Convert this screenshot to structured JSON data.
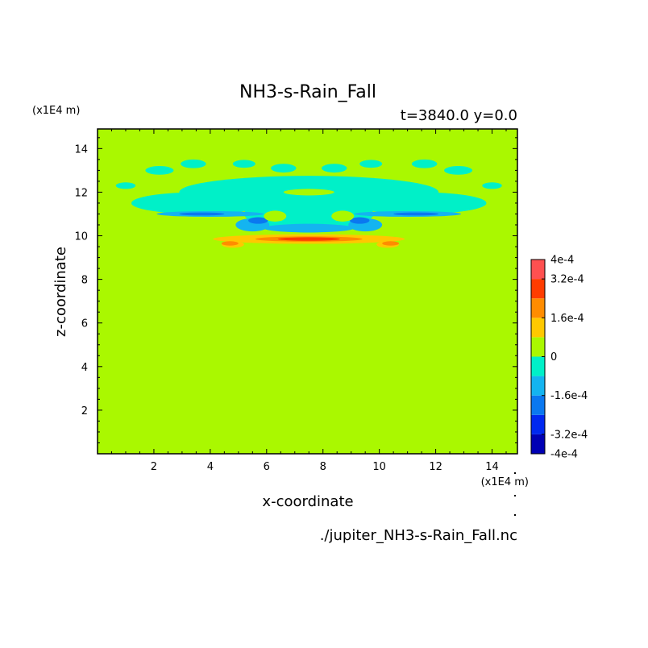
{
  "figure": {
    "title": "NH3-s-Rain_Fall",
    "subtitle": "t=3840.0 y=0.0",
    "source_file": "./jupiter_NH3-s-Rain_Fall.nc"
  },
  "chart_data": {
    "type": "heatmap",
    "title": "NH3-s-Rain_Fall",
    "xlabel": "x-coordinate",
    "ylabel": "z-coordinate",
    "x_unit": "(x1E4 m)",
    "y_unit": "(x1E4 m)",
    "xlim": [
      0,
      14.9
    ],
    "ylim": [
      0,
      14.9
    ],
    "xticks": [
      2,
      4,
      6,
      8,
      10,
      12,
      14
    ],
    "yticks": [
      2,
      4,
      6,
      8,
      10,
      12,
      14
    ],
    "background_level": 0,
    "colorbar": {
      "levels": [
        -0.0004,
        -0.00032,
        -0.00024,
        -0.00016,
        -8e-05,
        0,
        8e-05,
        0.00016,
        0.00024,
        0.00032,
        0.0004
      ],
      "colors": [
        "#0000b4",
        "#0028f0",
        "#0a78f0",
        "#14b4f0",
        "#00f0c8",
        "#aaf800",
        "#ffc800",
        "#ff8c00",
        "#ff3c00",
        "#ff5050"
      ],
      "tick_labels": [
        {
          "value": 0.0004,
          "label": "4e-4"
        },
        {
          "value": 0.00032,
          "label": "3.2e-4"
        },
        {
          "value": 0.00016,
          "label": "1.6e-4"
        },
        {
          "value": 0,
          "label": "0"
        },
        {
          "value": -0.00016,
          "label": "-1.6e-4"
        },
        {
          "value": -0.00032,
          "label": "-3.2e-4"
        },
        {
          "value": -0.0004,
          "label": "-4e-4"
        }
      ]
    },
    "regions": [
      {
        "level": -8e-05,
        "shape": "ellipse",
        "cx": 7.5,
        "cz": 12.0,
        "rx": 4.6,
        "rz": 0.75
      },
      {
        "level": -8e-05,
        "shape": "ellipse",
        "cx": 3.6,
        "cz": 11.5,
        "rx": 2.4,
        "rz": 0.5
      },
      {
        "level": -8e-05,
        "shape": "ellipse",
        "cx": 11.4,
        "cz": 11.5,
        "rx": 2.4,
        "rz": 0.5
      },
      {
        "level": -8e-05,
        "shape": "ellipse",
        "cx": 7.5,
        "cz": 11.0,
        "rx": 2.3,
        "rz": 0.7
      },
      {
        "level": -8e-05,
        "shape": "ellipse",
        "cx": 2.2,
        "cz": 13.0,
        "rx": 0.5,
        "rz": 0.2
      },
      {
        "level": -8e-05,
        "shape": "ellipse",
        "cx": 3.4,
        "cz": 13.3,
        "rx": 0.45,
        "rz": 0.2
      },
      {
        "level": -8e-05,
        "shape": "ellipse",
        "cx": 5.2,
        "cz": 13.3,
        "rx": 0.4,
        "rz": 0.18
      },
      {
        "level": -8e-05,
        "shape": "ellipse",
        "cx": 6.6,
        "cz": 13.1,
        "rx": 0.45,
        "rz": 0.2
      },
      {
        "level": -8e-05,
        "shape": "ellipse",
        "cx": 8.4,
        "cz": 13.1,
        "rx": 0.45,
        "rz": 0.2
      },
      {
        "level": -8e-05,
        "shape": "ellipse",
        "cx": 9.7,
        "cz": 13.3,
        "rx": 0.4,
        "rz": 0.18
      },
      {
        "level": -8e-05,
        "shape": "ellipse",
        "cx": 11.6,
        "cz": 13.3,
        "rx": 0.45,
        "rz": 0.2
      },
      {
        "level": -8e-05,
        "shape": "ellipse",
        "cx": 12.8,
        "cz": 13.0,
        "rx": 0.5,
        "rz": 0.2
      },
      {
        "level": -8e-05,
        "shape": "ellipse",
        "cx": 1.0,
        "cz": 12.3,
        "rx": 0.35,
        "rz": 0.15
      },
      {
        "level": -8e-05,
        "shape": "ellipse",
        "cx": 14.0,
        "cz": 12.3,
        "rx": 0.35,
        "rz": 0.15
      },
      {
        "level": -0.00016,
        "shape": "ellipse",
        "cx": 4.0,
        "cz": 11.0,
        "rx": 1.9,
        "rz": 0.13
      },
      {
        "level": -0.00016,
        "shape": "ellipse",
        "cx": 11.0,
        "cz": 11.0,
        "rx": 1.9,
        "rz": 0.13
      },
      {
        "level": -0.00016,
        "shape": "ellipse",
        "cx": 7.5,
        "cz": 10.35,
        "rx": 1.6,
        "rz": 0.2
      },
      {
        "level": -0.00016,
        "shape": "ellipse",
        "cx": 5.5,
        "cz": 10.5,
        "rx": 0.6,
        "rz": 0.3
      },
      {
        "level": -0.00016,
        "shape": "ellipse",
        "cx": 9.5,
        "cz": 10.5,
        "rx": 0.6,
        "rz": 0.3
      },
      {
        "level": -0.00024,
        "shape": "ellipse",
        "cx": 5.7,
        "cz": 10.7,
        "rx": 0.35,
        "rz": 0.15
      },
      {
        "level": -0.00024,
        "shape": "ellipse",
        "cx": 9.3,
        "cz": 10.7,
        "rx": 0.35,
        "rz": 0.15
      },
      {
        "level": -0.00024,
        "shape": "ellipse",
        "cx": 3.7,
        "cz": 11.0,
        "rx": 0.8,
        "rz": 0.07
      },
      {
        "level": -0.00024,
        "shape": "ellipse",
        "cx": 11.3,
        "cz": 11.0,
        "rx": 0.8,
        "rz": 0.07
      },
      {
        "level": 0,
        "shape": "ellipse",
        "cx": 6.3,
        "cz": 10.9,
        "rx": 0.4,
        "rz": 0.25
      },
      {
        "level": 0,
        "shape": "ellipse",
        "cx": 8.7,
        "cz": 10.9,
        "rx": 0.4,
        "rz": 0.25
      },
      {
        "level": 0,
        "shape": "ellipse",
        "cx": 7.5,
        "cz": 12.0,
        "rx": 0.9,
        "rz": 0.15
      },
      {
        "level": 8e-05,
        "shape": "ellipse",
        "cx": 7.5,
        "cz": 9.85,
        "rx": 3.4,
        "rz": 0.22
      },
      {
        "level": 8e-05,
        "shape": "ellipse",
        "cx": 4.8,
        "cz": 9.6,
        "rx": 0.4,
        "rz": 0.15
      },
      {
        "level": 8e-05,
        "shape": "ellipse",
        "cx": 10.3,
        "cz": 9.6,
        "rx": 0.4,
        "rz": 0.15
      },
      {
        "level": 0.00016,
        "shape": "ellipse",
        "cx": 7.5,
        "cz": 9.85,
        "rx": 1.9,
        "rz": 0.12
      },
      {
        "level": 0.00016,
        "shape": "ellipse",
        "cx": 4.7,
        "cz": 9.65,
        "rx": 0.3,
        "rz": 0.1
      },
      {
        "level": 0.00016,
        "shape": "ellipse",
        "cx": 10.4,
        "cz": 9.65,
        "rx": 0.3,
        "rz": 0.1
      },
      {
        "level": 0.00024,
        "shape": "ellipse",
        "cx": 7.5,
        "cz": 9.85,
        "rx": 1.1,
        "rz": 0.08
      }
    ]
  }
}
